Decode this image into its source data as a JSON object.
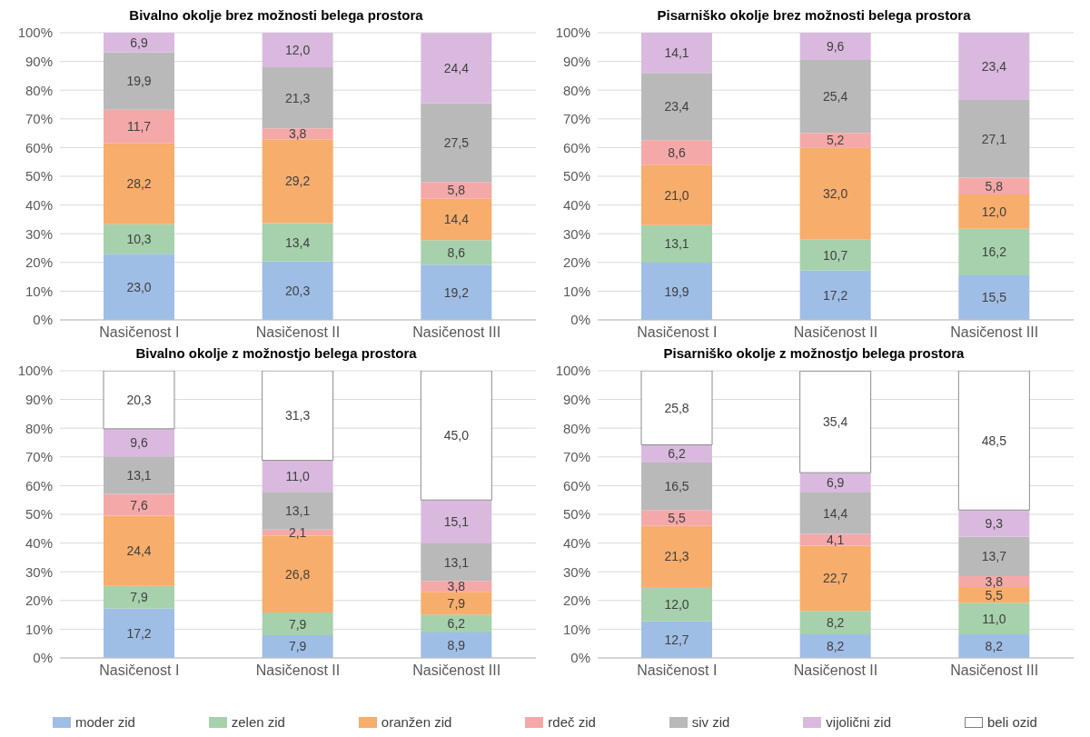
{
  "chart_data": [
    {
      "type": "bar",
      "stacked": true,
      "title": "Bivalno okolje brez možnosti belega prostora",
      "categories": [
        "Nasičenost I",
        "Nasičenost II",
        "Nasičenost III"
      ],
      "ylim": [
        0,
        100
      ],
      "yticks": [
        {
          "value": 0,
          "label": "0%"
        },
        {
          "value": 10,
          "label": "10%"
        },
        {
          "value": 20,
          "label": "20%"
        },
        {
          "value": 30,
          "label": "30%"
        },
        {
          "value": 40,
          "label": "40%"
        },
        {
          "value": 50,
          "label": "50%"
        },
        {
          "value": 60,
          "label": "60%"
        },
        {
          "value": 70,
          "label": "70%"
        },
        {
          "value": 80,
          "label": "80%"
        },
        {
          "value": 90,
          "label": "90%"
        },
        {
          "value": 100,
          "label": "100%"
        }
      ],
      "grid": "y",
      "legend": "bottom",
      "series": [
        {
          "name": "moder zid",
          "color": "#9fbee6",
          "values": [
            23.0,
            20.3,
            19.2
          ],
          "value_labels": [
            "23,0",
            "20,3",
            "19,2"
          ]
        },
        {
          "name": "zelen zid",
          "color": "#a6d1ac",
          "values": [
            10.3,
            13.4,
            8.6
          ],
          "value_labels": [
            "10,3",
            "13,4",
            "8,6"
          ]
        },
        {
          "name": "oranžen zid",
          "color": "#f7ad6b",
          "values": [
            28.2,
            29.2,
            14.4
          ],
          "value_labels": [
            "28,2",
            "29,2",
            "14,4"
          ]
        },
        {
          "name": "rdeč zid",
          "color": "#f5a8a8",
          "values": [
            11.7,
            3.8,
            5.8
          ],
          "value_labels": [
            "11,7",
            "3,8",
            "5,8"
          ]
        },
        {
          "name": "siv zid",
          "color": "#b9b9b9",
          "values": [
            19.9,
            21.3,
            27.5
          ],
          "value_labels": [
            "19,9",
            "21,3",
            "27,5"
          ]
        },
        {
          "name": "vijolični zid",
          "color": "#d9bade",
          "values": [
            6.9,
            12.0,
            24.4
          ],
          "value_labels": [
            "6,9",
            "12,0",
            "24,4"
          ]
        }
      ]
    },
    {
      "type": "bar",
      "stacked": true,
      "title": "Pisarniško okolje brez možnosti belega prostora",
      "categories": [
        "Nasičenost I",
        "Nasičenost II",
        "Nasičenost III"
      ],
      "ylim": [
        0,
        100
      ],
      "yticks": [
        {
          "value": 0,
          "label": "0%"
        },
        {
          "value": 10,
          "label": "10%"
        },
        {
          "value": 20,
          "label": "20%"
        },
        {
          "value": 30,
          "label": "30%"
        },
        {
          "value": 40,
          "label": "40%"
        },
        {
          "value": 50,
          "label": "50%"
        },
        {
          "value": 60,
          "label": "60%"
        },
        {
          "value": 70,
          "label": "70%"
        },
        {
          "value": 80,
          "label": "80%"
        },
        {
          "value": 90,
          "label": "90%"
        },
        {
          "value": 100,
          "label": "100%"
        }
      ],
      "grid": "y",
      "series": [
        {
          "color": "#9fbee6",
          "values": [
            19.9,
            17.2,
            15.5
          ],
          "value_labels": [
            "19,9",
            "17,2",
            "15,5"
          ]
        },
        {
          "color": "#a6d1ac",
          "values": [
            13.1,
            10.7,
            16.2
          ],
          "value_labels": [
            "13,1",
            "10,7",
            "16,2"
          ]
        },
        {
          "color": "#f7ad6b",
          "values": [
            21.0,
            32.0,
            12.0
          ],
          "value_labels": [
            "21,0",
            "32,0",
            "12,0"
          ]
        },
        {
          "color": "#f5a8a8",
          "values": [
            8.6,
            5.2,
            5.8
          ],
          "value_labels": [
            "8,6",
            "5,2",
            "5,8"
          ]
        },
        {
          "color": "#b9b9b9",
          "values": [
            23.4,
            25.4,
            27.1
          ],
          "value_labels": [
            "23,4",
            "25,4",
            "27,1"
          ]
        },
        {
          "color": "#d9bade",
          "values": [
            14.1,
            9.6,
            23.4
          ],
          "value_labels": [
            "14,1",
            "9,6",
            "23,4"
          ]
        }
      ]
    },
    {
      "type": "bar",
      "stacked": true,
      "title": "Bivalno okolje z možnostjo belega prostora",
      "categories": [
        "Nasičenost I",
        "Nasičenost II",
        "Nasičenost III"
      ],
      "ylim": [
        0,
        100
      ],
      "yticks": [
        {
          "value": 0,
          "label": "0%"
        },
        {
          "value": 10,
          "label": "10%"
        },
        {
          "value": 20,
          "label": "20%"
        },
        {
          "value": 30,
          "label": "30%"
        },
        {
          "value": 40,
          "label": "40%"
        },
        {
          "value": 50,
          "label": "50%"
        },
        {
          "value": 60,
          "label": "60%"
        },
        {
          "value": 70,
          "label": "70%"
        },
        {
          "value": 80,
          "label": "80%"
        },
        {
          "value": 90,
          "label": "90%"
        },
        {
          "value": 100,
          "label": "100%"
        }
      ],
      "grid": "y",
      "legend": "bottom",
      "series": [
        {
          "color": "#9fbee6",
          "values": [
            17.2,
            7.9,
            8.9
          ],
          "value_labels": [
            "17,2",
            "7,9",
            "8,9"
          ]
        },
        {
          "color": "#a6d1ac",
          "values": [
            7.9,
            7.9,
            6.2
          ],
          "value_labels": [
            "7,9",
            "7,9",
            "6,2"
          ]
        },
        {
          "color": "#f7ad6b",
          "values": [
            24.4,
            26.8,
            7.9
          ],
          "value_labels": [
            "24,4",
            "26,8",
            "7,9"
          ]
        },
        {
          "color": "#f5a8a8",
          "values": [
            7.6,
            2.1,
            3.8
          ],
          "value_labels": [
            "7,6",
            "2,1",
            "3,8"
          ]
        },
        {
          "color": "#b9b9b9",
          "values": [
            13.1,
            13.1,
            13.1
          ],
          "value_labels": [
            "13,1",
            "13,1",
            "13,1"
          ]
        },
        {
          "color": "#d9bade",
          "values": [
            9.6,
            11.0,
            15.1
          ],
          "value_labels": [
            "9,6",
            "11,0",
            "15,1"
          ]
        },
        {
          "name": "beli ozid",
          "color": "#ffffff",
          "values": [
            20.3,
            31.3,
            45.0
          ],
          "value_labels": [
            "20,3",
            "31,3",
            "45,0"
          ]
        }
      ]
    },
    {
      "type": "bar",
      "stacked": true,
      "title": "Pisarniško okolje z možnostjo belega prostora",
      "categories": [
        "Nasičenost I",
        "Nasičenost II",
        "Nasičenost III"
      ],
      "ylim": [
        0,
        100
      ],
      "yticks": [
        {
          "value": 0,
          "label": "0%"
        },
        {
          "value": 10,
          "label": "10%"
        },
        {
          "value": 20,
          "label": "20%"
        },
        {
          "value": 30,
          "label": "30%"
        },
        {
          "value": 40,
          "label": "40%"
        },
        {
          "value": 50,
          "label": "50%"
        },
        {
          "value": 60,
          "label": "60%"
        },
        {
          "value": 70,
          "label": "70%"
        },
        {
          "value": 80,
          "label": "80%"
        },
        {
          "value": 90,
          "label": "90%"
        },
        {
          "value": 100,
          "label": "100%"
        }
      ],
      "grid": "y",
      "series": [
        {
          "color": "#9fbee6",
          "values": [
            12.7,
            8.2,
            8.2
          ],
          "value_labels": [
            "12,7",
            "8,2",
            "8,2"
          ]
        },
        {
          "color": "#a6d1ac",
          "values": [
            12.0,
            8.2,
            11.0
          ],
          "value_labels": [
            "12,0",
            "8,2",
            "11,0"
          ]
        },
        {
          "color": "#f7ad6b",
          "values": [
            21.3,
            22.7,
            5.5
          ],
          "value_labels": [
            "21,3",
            "22,7",
            "5,5"
          ]
        },
        {
          "color": "#f5a8a8",
          "values": [
            5.5,
            4.1,
            3.8
          ],
          "value_labels": [
            "5,5",
            "4,1",
            "3,8"
          ]
        },
        {
          "color": "#b9b9b9",
          "values": [
            16.5,
            14.4,
            13.7
          ],
          "value_labels": [
            "16,5",
            "14,4",
            "13,7"
          ]
        },
        {
          "color": "#d9bade",
          "values": [
            6.2,
            6.9,
            9.3
          ],
          "value_labels": [
            "6,2",
            "6,9",
            "9,3"
          ]
        },
        {
          "color": "#ffffff",
          "values": [
            25.8,
            35.4,
            48.5
          ],
          "value_labels": [
            "25,8",
            "35,4",
            "48,5"
          ]
        }
      ]
    }
  ]
}
